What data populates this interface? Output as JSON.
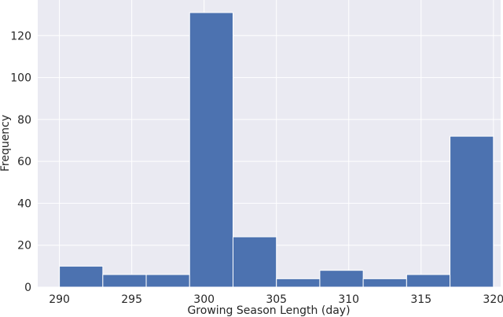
{
  "chart_data": {
    "type": "bar",
    "subtype": "histogram",
    "title": "",
    "xlabel": "Growing Season Length (day)",
    "ylabel": "Frequency",
    "xlim": [
      288.5,
      320.5
    ],
    "ylim": [
      0,
      137
    ],
    "xticks": [
      290,
      295,
      300,
      305,
      310,
      315,
      320
    ],
    "yticks": [
      0,
      20,
      40,
      60,
      80,
      100,
      120
    ],
    "grid": true,
    "bar_color": "#4c72b0",
    "background_color": "#eaeaf2",
    "bins": [
      {
        "start": 290.0,
        "end": 293.0,
        "value": 10
      },
      {
        "start": 293.0,
        "end": 296.0,
        "value": 6
      },
      {
        "start": 296.0,
        "end": 299.0,
        "value": 6
      },
      {
        "start": 299.0,
        "end": 302.0,
        "value": 131
      },
      {
        "start": 302.0,
        "end": 305.0,
        "value": 24
      },
      {
        "start": 305.0,
        "end": 308.0,
        "value": 4
      },
      {
        "start": 308.0,
        "end": 311.0,
        "value": 8
      },
      {
        "start": 311.0,
        "end": 314.0,
        "value": 4
      },
      {
        "start": 314.0,
        "end": 317.0,
        "value": 6
      },
      {
        "start": 317.0,
        "end": 320.0,
        "value": 72
      }
    ]
  }
}
